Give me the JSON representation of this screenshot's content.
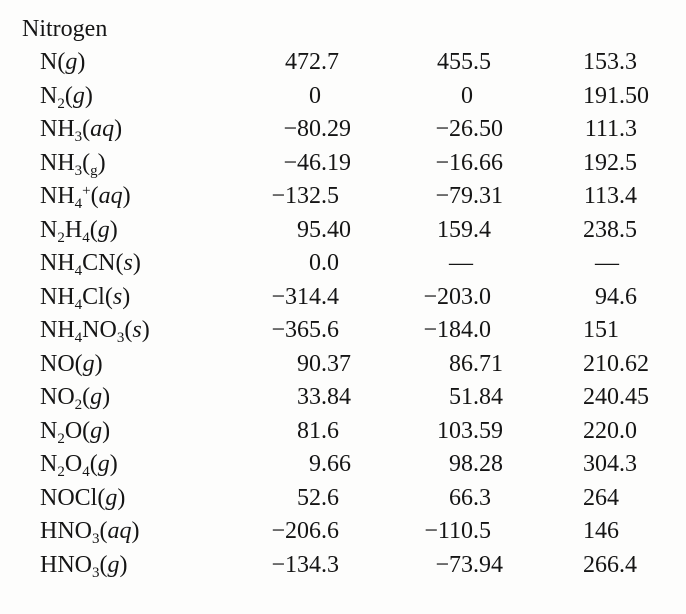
{
  "section_title": "Nitrogen",
  "colors": {
    "text": "#151515",
    "background": "#fdfdfc"
  },
  "missing_value_symbol": "—",
  "table": {
    "rows": [
      {
        "formula": [
          [
            "N"
          ],
          [
            "("
          ],
          [
            "g",
            "i"
          ],
          [
            ")"
          ]
        ],
        "values": [
          "472.7",
          "455.5",
          "153.3"
        ]
      },
      {
        "formula": [
          [
            "N"
          ],
          [
            "2",
            "sub"
          ],
          [
            "("
          ],
          [
            "g",
            "i"
          ],
          [
            ")"
          ]
        ],
        "values": [
          "0",
          "0",
          "191.50"
        ]
      },
      {
        "formula": [
          [
            "NH"
          ],
          [
            "3",
            "sub"
          ],
          [
            "("
          ],
          [
            "aq",
            "i"
          ],
          [
            ")"
          ]
        ],
        "values": [
          "−80.29",
          "−26.50",
          "111.3"
        ]
      },
      {
        "formula": [
          [
            "NH"
          ],
          [
            "3",
            "sub"
          ],
          [
            "("
          ],
          [
            "g",
            "sub"
          ],
          [
            ")"
          ]
        ],
        "values": [
          "−46.19",
          "−16.66",
          "192.5"
        ]
      },
      {
        "formula": [
          [
            "NH"
          ],
          [
            "4",
            "sub"
          ],
          [
            "+",
            "sup"
          ],
          [
            "("
          ],
          [
            "aq",
            "i"
          ],
          [
            ")"
          ]
        ],
        "values": [
          "−132.5",
          "−79.31",
          "113.4"
        ]
      },
      {
        "formula": [
          [
            "N"
          ],
          [
            "2",
            "sub"
          ],
          [
            "H"
          ],
          [
            "4",
            "sub"
          ],
          [
            "("
          ],
          [
            "g",
            "i"
          ],
          [
            ")"
          ]
        ],
        "values": [
          "95.40",
          "159.4",
          "238.5"
        ]
      },
      {
        "formula": [
          [
            "NH"
          ],
          [
            "4",
            "sub"
          ],
          [
            "CN("
          ],
          [
            "s",
            "i"
          ],
          [
            ")"
          ]
        ],
        "values": [
          "0.0",
          "—",
          "—"
        ]
      },
      {
        "formula": [
          [
            "NH"
          ],
          [
            "4",
            "sub"
          ],
          [
            "Cl("
          ],
          [
            "s",
            "i"
          ],
          [
            ")"
          ]
        ],
        "values": [
          "−314.4",
          "−203.0",
          "94.6"
        ]
      },
      {
        "formula": [
          [
            "NH"
          ],
          [
            "4",
            "sub"
          ],
          [
            "NO"
          ],
          [
            "3",
            "sub"
          ],
          [
            "("
          ],
          [
            "s",
            "i"
          ],
          [
            ")"
          ]
        ],
        "values": [
          "−365.6",
          "−184.0",
          "151"
        ]
      },
      {
        "formula": [
          [
            "NO("
          ],
          [
            "g",
            "i"
          ],
          [
            ")"
          ]
        ],
        "values": [
          "90.37",
          "86.71",
          "210.62"
        ]
      },
      {
        "formula": [
          [
            "NO"
          ],
          [
            "2",
            "sub"
          ],
          [
            "("
          ],
          [
            "g",
            "i"
          ],
          [
            ")"
          ]
        ],
        "values": [
          "33.84",
          "51.84",
          "240.45"
        ]
      },
      {
        "formula": [
          [
            "N"
          ],
          [
            "2",
            "sub"
          ],
          [
            "O("
          ],
          [
            "g",
            "i"
          ],
          [
            ")"
          ]
        ],
        "values": [
          "81.6",
          "103.59",
          "220.0"
        ]
      },
      {
        "formula": [
          [
            "N"
          ],
          [
            "2",
            "sub"
          ],
          [
            "O"
          ],
          [
            "4",
            "sub"
          ],
          [
            "("
          ],
          [
            "g",
            "i"
          ],
          [
            ")"
          ]
        ],
        "values": [
          "9.66",
          "98.28",
          "304.3"
        ]
      },
      {
        "formula": [
          [
            "NOCl("
          ],
          [
            "g",
            "i"
          ],
          [
            ")"
          ]
        ],
        "values": [
          "52.6",
          "66.3",
          "264"
        ]
      },
      {
        "formula": [
          [
            "HNO"
          ],
          [
            "3",
            "sub"
          ],
          [
            "("
          ],
          [
            "aq",
            "i"
          ],
          [
            ")"
          ]
        ],
        "values": [
          "−206.6",
          "−110.5",
          "146"
        ]
      },
      {
        "formula": [
          [
            "HNO"
          ],
          [
            "3",
            "sub"
          ],
          [
            "("
          ],
          [
            "g",
            "i"
          ],
          [
            ")"
          ]
        ],
        "values": [
          "−134.3",
          "−73.94",
          "266.4"
        ]
      }
    ]
  }
}
